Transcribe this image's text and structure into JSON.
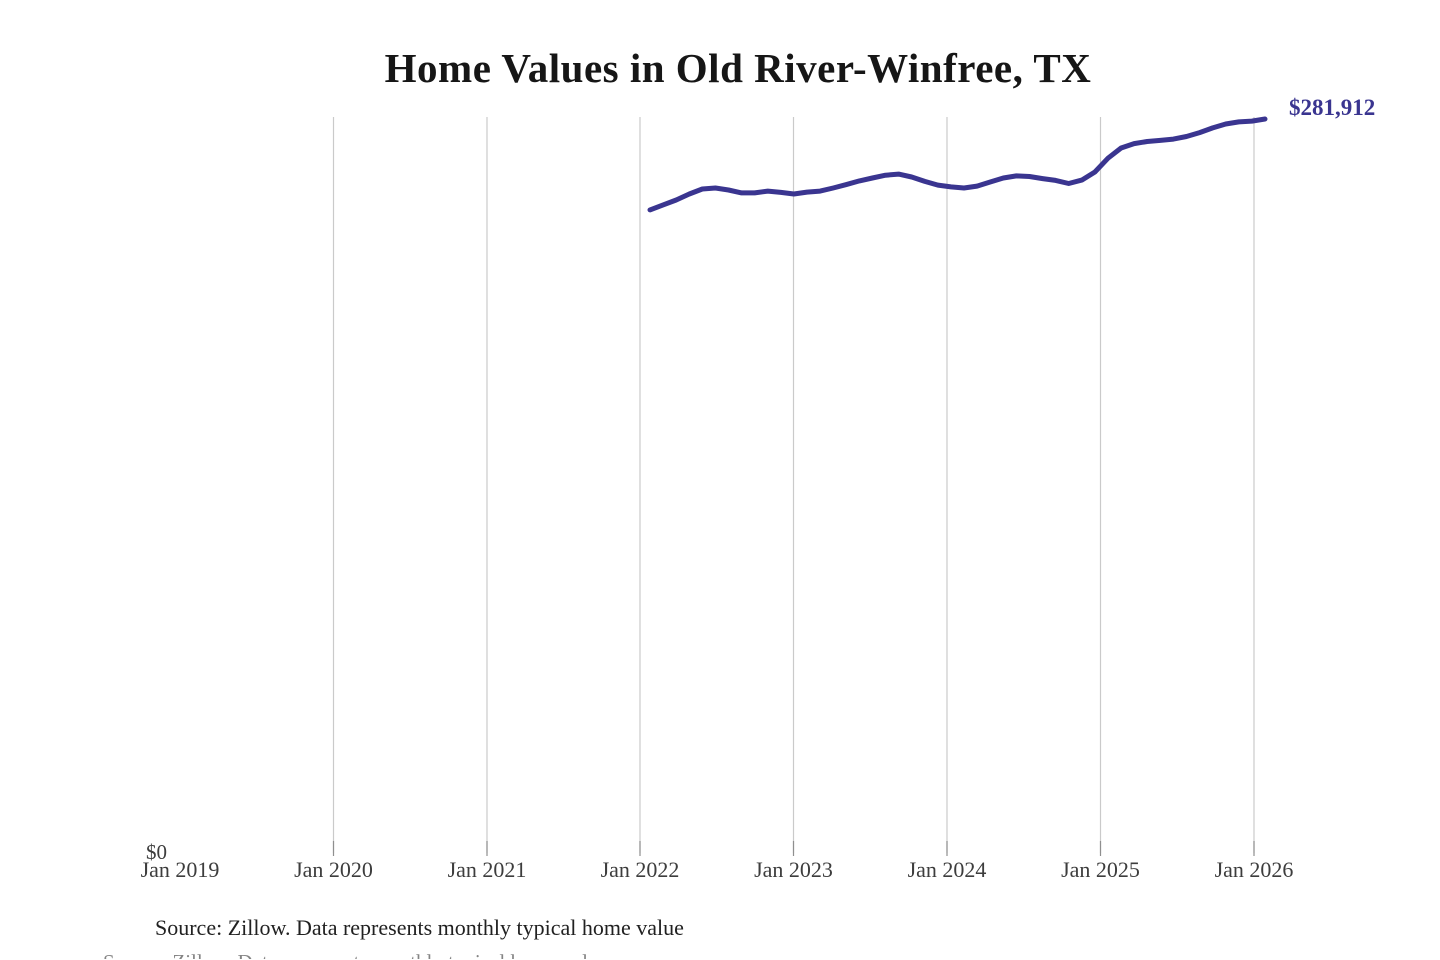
{
  "title": "Home Values in Old River-Winfree, TX",
  "source_note": "Source: Zillow. Data represents monthly typical home value",
  "colors": {
    "line": "#3a3590",
    "end_label": "#3a3590",
    "gridline": "#cacaca",
    "tick": "#8f8f8f",
    "title": "#161616",
    "axis_label": "#3d3d3d",
    "source": "#212121"
  },
  "chart_data": {
    "type": "line",
    "title": "Home Values in Old River-Winfree, TX",
    "series_name": "Monthly typical home value",
    "unit": "USD",
    "end_label": "$281,912",
    "latest_value": 281912,
    "grid": "vertical-only",
    "legend": "none",
    "y_axis": {
      "zero_label": "$0",
      "range": [
        0,
        281912
      ],
      "visible_labels": [
        "$0"
      ]
    },
    "x_axis": {
      "tick_labels": [
        "Jan 2019",
        "Jan 2020",
        "Jan 2021",
        "Jan 2022",
        "Jan 2023",
        "Jan 2024",
        "Jan 2025",
        "Jan 2026"
      ],
      "data_start": "Feb 2022",
      "data_end": "Jan 2026"
    },
    "months": [
      "Feb 2022",
      "Mar 2022",
      "Apr 2022",
      "May 2022",
      "Jun 2022",
      "Jul 2022",
      "Aug 2022",
      "Sep 2022",
      "Oct 2022",
      "Nov 2022",
      "Dec 2022",
      "Jan 2023",
      "Feb 2023",
      "Mar 2023",
      "Apr 2023",
      "May 2023",
      "Jun 2023",
      "Jul 2023",
      "Aug 2023",
      "Sep 2023",
      "Oct 2023",
      "Nov 2023",
      "Dec 2023",
      "Jan 2024",
      "Feb 2024",
      "Mar 2024",
      "Apr 2024",
      "May 2024",
      "Jun 2024",
      "Jul 2024",
      "Aug 2024",
      "Sep 2024",
      "Oct 2024",
      "Nov 2024",
      "Dec 2024",
      "Jan 2025",
      "Feb 2025",
      "Mar 2025",
      "Apr 2025",
      "May 2025",
      "Jun 2025",
      "Jul 2025",
      "Aug 2025",
      "Sep 2025",
      "Oct 2025",
      "Nov 2025",
      "Dec 2025",
      "Jan 2026"
    ],
    "values": [
      247100,
      249000,
      250900,
      253200,
      255100,
      255500,
      254700,
      253600,
      253600,
      254300,
      253800,
      253200,
      253900,
      254300,
      255500,
      256800,
      258200,
      259300,
      260400,
      260800,
      259700,
      258000,
      256600,
      255900,
      255500,
      256200,
      257800,
      259300,
      260100,
      259900,
      259100,
      258400,
      257200,
      258500,
      261600,
      266900,
      270800,
      272500,
      273300,
      273700,
      274200,
      275200,
      276700,
      278500,
      280000,
      280800,
      281100,
      281912
    ]
  }
}
